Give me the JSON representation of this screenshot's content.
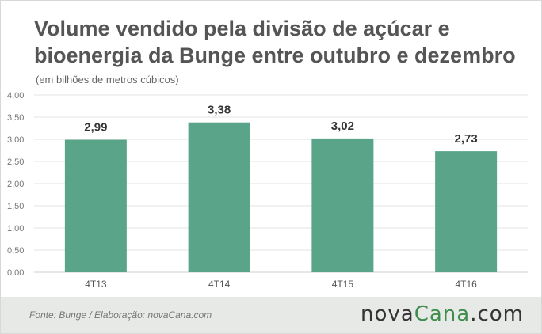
{
  "title": "Volume vendido pela divisão de açúcar e bioenergia da Bunge entre outubro e dezembro",
  "subtitle": "(em bilhões de metros cúbicos)",
  "footer": {
    "source": "Fonte:  Bunge  / Elaboração:  novaCana.com",
    "logo_main": "nova",
    "logo_accent": "Cana",
    "logo_suffix": ".com"
  },
  "colors": {
    "bar": "#5aa58a",
    "logo_accent": "#3f8d4c"
  },
  "chart_data": {
    "type": "bar",
    "categories": [
      "4T13",
      "4T14",
      "4T15",
      "4T16"
    ],
    "values": [
      2.99,
      3.38,
      3.02,
      2.73
    ],
    "value_labels": [
      "2,99",
      "3,38",
      "3,02",
      "2,73"
    ],
    "title": "Volume vendido pela divisão de açúcar e bioenergia da Bunge entre outubro e dezembro",
    "subtitle": "(em bilhões de metros cúbicos)",
    "xlabel": "",
    "ylabel": "",
    "ylim": [
      0,
      4
    ],
    "yticks": [
      0,
      0.5,
      1,
      1.5,
      2,
      2.5,
      3,
      3.5,
      4
    ],
    "ytick_labels": [
      "0,00",
      "0,50",
      "1,00",
      "1,50",
      "2,00",
      "2,50",
      "3,00",
      "3,50",
      "4,00"
    ],
    "grid": true,
    "legend": "none"
  }
}
